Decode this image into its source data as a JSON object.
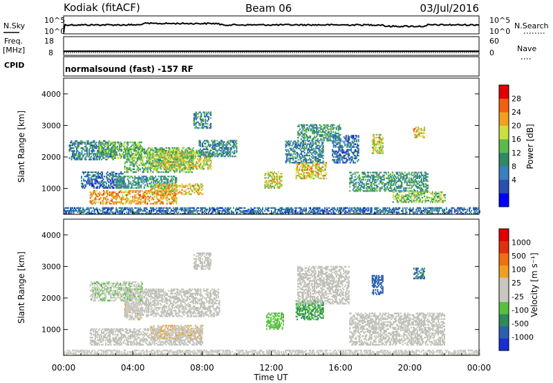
{
  "header": {
    "station": "Kodiak (fitACF)",
    "beam": "Beam 06",
    "date": "03/Jul/2016"
  },
  "top_panels": {
    "nsky_label": "N.Sky",
    "nsky_ticks": [
      "10^5",
      "10^0"
    ],
    "nsearch_label": "N.Search",
    "nsearch_ticks": [
      "10^5",
      "10^0"
    ],
    "freq_label_1": "Freq.",
    "freq_label_2": "[MHz]",
    "freq_ticks": [
      "18",
      "8"
    ],
    "nave_label": "Nave",
    "nave_ticks": [
      "60",
      "0"
    ],
    "cpid_label": "CPID",
    "cpid_text": "normalsound (fast) -157 RF"
  },
  "colors": {
    "power_scale": [
      "#0000ff",
      "#2a4fb0",
      "#3a7fc0",
      "#2f8a6a",
      "#5cba4a",
      "#c8e040",
      "#f0a020",
      "#f06010",
      "#e00000"
    ],
    "velocity_scale": [
      "#1a2fd0",
      "#2a60b0",
      "#2e8a5a",
      "#58c040",
      "#c8c8c0",
      "#c8c8c0",
      "#f0a020",
      "#f07010",
      "#e03010",
      "#e00000"
    ],
    "ground_scatter": "#c0c0b8"
  },
  "chart_data": [
    {
      "type": "heatmap",
      "panel": "power",
      "ylabel": "Slant Range [km]",
      "yticks": [
        "4000",
        "3000",
        "2000",
        "1000"
      ],
      "ylim": [
        180,
        4500
      ],
      "xlim": [
        "00:00",
        "24:00"
      ],
      "colorbar_label": "Power [dB]",
      "colorbar_ticks": [
        "28",
        "24",
        "20",
        "16",
        "12",
        "8",
        "4"
      ],
      "clim": [
        0,
        30
      ],
      "echo_regions": [
        {
          "t0": 0.3,
          "t1": 3.0,
          "r0": 1900,
          "r1": 2500,
          "value": 10
        },
        {
          "t0": 2.0,
          "t1": 4.5,
          "r0": 1950,
          "r1": 2450,
          "value": 14
        },
        {
          "t0": 3.5,
          "t1": 7.5,
          "r0": 1500,
          "r1": 2300,
          "value": 14
        },
        {
          "t0": 5.0,
          "t1": 8.5,
          "r0": 1600,
          "r1": 2200,
          "value": 18
        },
        {
          "t0": 7.8,
          "t1": 10.0,
          "r0": 2000,
          "r1": 2500,
          "value": 10
        },
        {
          "t0": 1.0,
          "t1": 3.5,
          "r0": 1000,
          "r1": 1500,
          "value": 8
        },
        {
          "t0": 3.0,
          "t1": 6.5,
          "r0": 1000,
          "r1": 1400,
          "value": 12
        },
        {
          "t0": 1.5,
          "t1": 6.5,
          "r0": 500,
          "r1": 950,
          "value": 22
        },
        {
          "t0": 5.0,
          "t1": 8.0,
          "r0": 800,
          "r1": 1150,
          "value": 20
        },
        {
          "t0": 7.5,
          "t1": 8.5,
          "r0": 2900,
          "r1": 3400,
          "value": 10
        },
        {
          "t0": 11.6,
          "t1": 12.6,
          "r0": 1000,
          "r1": 1500,
          "value": 18
        },
        {
          "t0": 13.4,
          "t1": 15.2,
          "r0": 1300,
          "r1": 1800,
          "value": 20
        },
        {
          "t0": 13.5,
          "t1": 16.0,
          "r0": 2500,
          "r1": 3000,
          "value": 12
        },
        {
          "t0": 12.8,
          "t1": 15.0,
          "r0": 1800,
          "r1": 2500,
          "value": 10
        },
        {
          "t0": 15.5,
          "t1": 17.0,
          "r0": 1800,
          "r1": 2700,
          "value": 8
        },
        {
          "t0": 16.5,
          "t1": 21.0,
          "r0": 900,
          "r1": 1500,
          "value": 12
        },
        {
          "t0": 19.0,
          "t1": 22.0,
          "r0": 550,
          "r1": 900,
          "value": 16
        },
        {
          "t0": 17.8,
          "t1": 18.4,
          "r0": 2100,
          "r1": 2700,
          "value": 18
        },
        {
          "t0": 20.2,
          "t1": 20.8,
          "r0": 2600,
          "r1": 2950,
          "value": 20
        },
        {
          "t0": 0.0,
          "t1": 24.0,
          "r0": 180,
          "r1": 400,
          "value": 8
        }
      ]
    },
    {
      "type": "heatmap",
      "panel": "velocity",
      "ylabel": "Slant Range [km]",
      "yticks": [
        "4000",
        "3000",
        "2000",
        "1000"
      ],
      "ylim": [
        180,
        4500
      ],
      "xlabel": "Time UT",
      "xticks": [
        "00:00",
        "04:00",
        "08:00",
        "12:00",
        "16:00",
        "20:00",
        "00:00"
      ],
      "xlim": [
        "00:00",
        "24:00"
      ],
      "colorbar_label": "Velocity [m s⁻¹]",
      "colorbar_ticks": [
        "1000",
        "500",
        "100",
        "25",
        "-25",
        "-100",
        "-500",
        "-1000"
      ],
      "clim": [
        -1000,
        1000
      ],
      "echo_regions": [
        {
          "t0": 1.5,
          "t1": 8.0,
          "r0": 500,
          "r1": 1000,
          "value": 0,
          "kind": "ground"
        },
        {
          "t0": 3.5,
          "t1": 9.0,
          "r0": 1400,
          "r1": 2300,
          "value": 0,
          "kind": "ground"
        },
        {
          "t0": 5.0,
          "t1": 8.0,
          "r0": 700,
          "r1": 1150,
          "value": 150,
          "kind": "ionospheric"
        },
        {
          "t0": 1.5,
          "t1": 4.5,
          "r0": 1900,
          "r1": 2500,
          "value": -150,
          "kind": "ionospheric"
        },
        {
          "t0": 3.5,
          "t1": 4.5,
          "r0": 1300,
          "r1": 1800,
          "value": 120,
          "kind": "ionospheric"
        },
        {
          "t0": 7.5,
          "t1": 8.5,
          "r0": 2900,
          "r1": 3400,
          "value": 0,
          "kind": "ground"
        },
        {
          "t0": 11.7,
          "t1": 12.7,
          "r0": 1000,
          "r1": 1500,
          "value": -300,
          "kind": "ionospheric"
        },
        {
          "t0": 13.4,
          "t1": 15.0,
          "r0": 1300,
          "r1": 1900,
          "value": -400,
          "kind": "ionospheric"
        },
        {
          "t0": 13.5,
          "t1": 16.5,
          "r0": 1800,
          "r1": 3000,
          "value": 0,
          "kind": "ground"
        },
        {
          "t0": 16.5,
          "t1": 22.0,
          "r0": 500,
          "r1": 1500,
          "value": 0,
          "kind": "ground"
        },
        {
          "t0": 17.8,
          "t1": 18.4,
          "r0": 2100,
          "r1": 2700,
          "value": -700,
          "kind": "ionospheric"
        },
        {
          "t0": 20.2,
          "t1": 20.8,
          "r0": 2600,
          "r1": 2950,
          "value": -600,
          "kind": "ionospheric"
        },
        {
          "t0": 0.0,
          "t1": 24.0,
          "r0": 180,
          "r1": 320,
          "value": -50,
          "kind": "mixed"
        }
      ]
    }
  ]
}
